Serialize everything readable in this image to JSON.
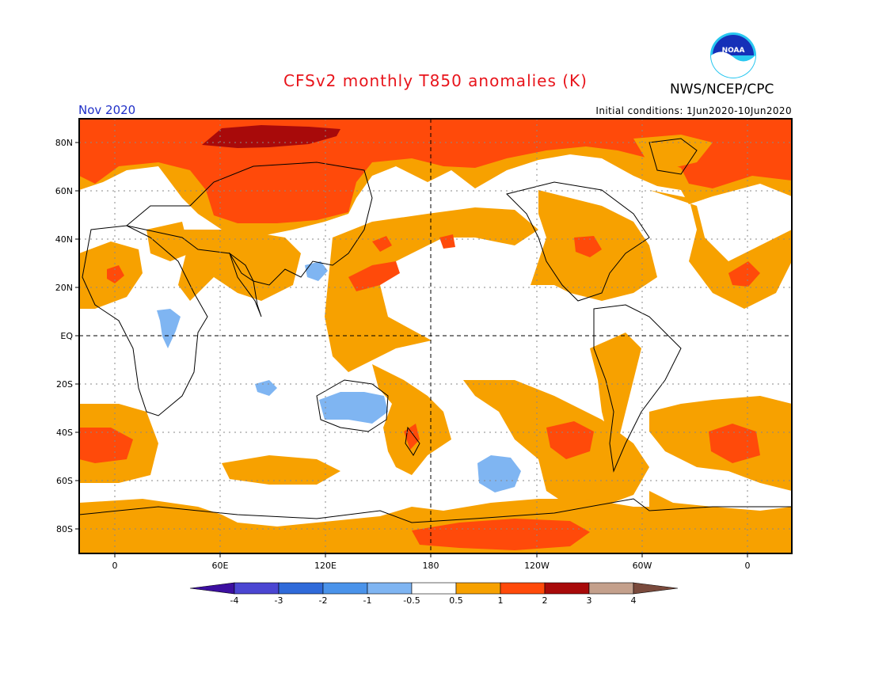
{
  "header": {
    "title": "CFSv2 monthly T850 anomalies (K)",
    "agency": "NWS/NCEP/CPC",
    "logo_text": "NOAA",
    "month": "Nov 2020",
    "initial_conditions": "Initial conditions: 1Jun2020-10Jun2020"
  },
  "map": {
    "lat_labels": [
      "80N",
      "60N",
      "40N",
      "20N",
      "EQ",
      "20S",
      "40S",
      "60S",
      "80S"
    ],
    "lon_labels": [
      "0",
      "60E",
      "120E",
      "180",
      "120W",
      "60W",
      "0"
    ]
  },
  "colorbar": {
    "tick_labels": [
      "-4",
      "-3",
      "-2",
      "-1",
      "-0.5",
      "0.5",
      "1",
      "2",
      "3",
      "4"
    ],
    "colors": [
      "#3c0fa0",
      "#4b46d2",
      "#2f6ad9",
      "#4a93ea",
      "#7fb5f2",
      "#ffffff",
      "#f7a100",
      "#ff4a0a",
      "#a80a0a",
      "#c4a08c",
      "#7a4a3c"
    ]
  },
  "colors": {
    "title": "#e8141b",
    "month": "#1f2fc7",
    "orange": "#f7a100",
    "red": "#ff4a0a",
    "dark_red": "#a80a0a",
    "light_blue": "#7fb5f2"
  }
}
